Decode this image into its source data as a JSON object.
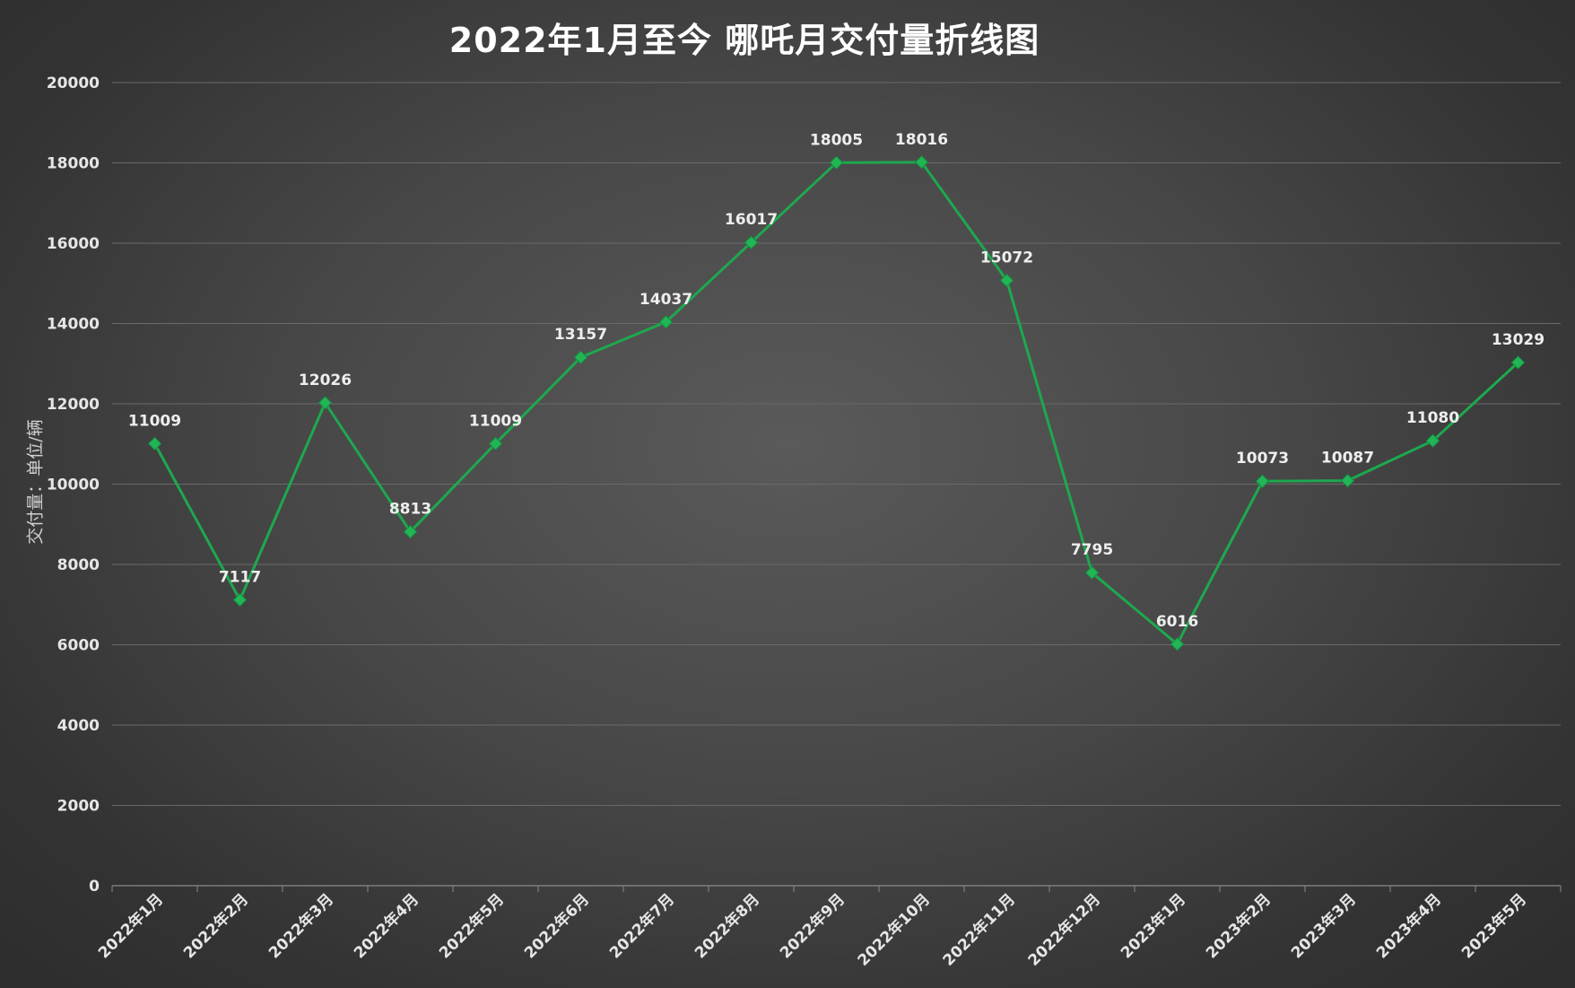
{
  "chart_data": {
    "type": "line",
    "title": "2022年1月至今 哪吒月交付量折线图",
    "xlabel": "",
    "ylabel": "交付量：单位/辆",
    "ylim": [
      0,
      20000
    ],
    "yticks": [
      0,
      2000,
      4000,
      6000,
      8000,
      10000,
      12000,
      14000,
      16000,
      18000,
      20000
    ],
    "grid": true,
    "legend": "none",
    "categories": [
      "2022年1月",
      "2022年2月",
      "2022年3月",
      "2022年4月",
      "2022年5月",
      "2022年6月",
      "2022年7月",
      "2022年8月",
      "2022年9月",
      "2022年10月",
      "2022年11月",
      "2022年12月",
      "2023年1月",
      "2023年2月",
      "2023年3月",
      "2023年4月",
      "2023年5月"
    ],
    "series": [
      {
        "values": [
          11009,
          7117,
          12026,
          8813,
          11009,
          13157,
          14037,
          16017,
          18005,
          18016,
          15072,
          7795,
          6016,
          10073,
          10087,
          11080,
          13029
        ],
        "color": "#1ea84f",
        "marker": "diamond"
      }
    ]
  }
}
